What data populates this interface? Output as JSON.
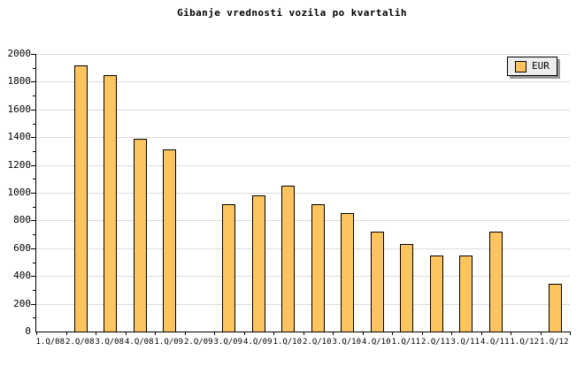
{
  "title": "Gibanje vrednosti vozila po kvartalih",
  "legend": {
    "label": "EUR"
  },
  "colors": {
    "bar_fill": "#fdc45f",
    "bar_border": "#000000",
    "gridline": "#dcdcdc",
    "axis": "#000000",
    "legend_background": "#ededed",
    "legend_shadow": "#999999",
    "background": "#ffffff"
  },
  "chart_data": {
    "type": "bar",
    "title": "Gibanje vrednosti vozila po kvartalih",
    "series_name": "EUR",
    "categories": [
      "1.Q/08",
      "2.Q/08",
      "3.Q/08",
      "4.Q/08",
      "1.Q/09",
      "2.Q/09",
      "3.Q/09",
      "4.Q/09",
      "1.Q/10",
      "2.Q/10",
      "3.Q/10",
      "4.Q/10",
      "1.Q/11",
      "2.Q/11",
      "3.Q/11",
      "4.Q/11",
      "1.Q/12",
      "1.Q/12"
    ],
    "values": [
      null,
      1920,
      1845,
      1390,
      1315,
      null,
      920,
      980,
      1050,
      920,
      855,
      720,
      630,
      545,
      550,
      720,
      null,
      345
    ],
    "xlabel": "",
    "ylabel": "",
    "ylim": [
      0,
      2000
    ],
    "ytick_major": 200,
    "ytick_minor": 100,
    "grid": true,
    "legend_position": "top-right"
  }
}
